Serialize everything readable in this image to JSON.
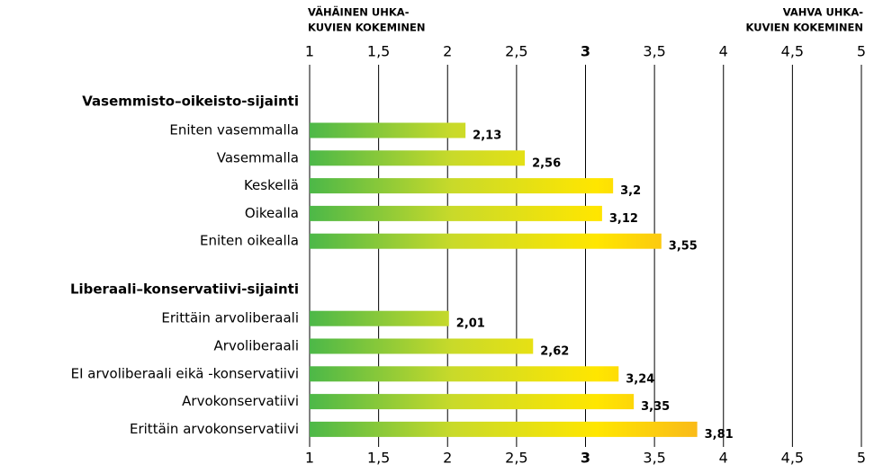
{
  "chart_data": {
    "type": "bar",
    "orientation": "horizontal",
    "annotations": [
      {
        "lines": [
          "VÄHÄINEN UHKA-",
          "KUVIEN KOKEMINEN"
        ]
      },
      {
        "lines": [
          "VAHVA UHKA-",
          "KUVIEN KOKEMINEN"
        ]
      }
    ],
    "groups": [
      {
        "name": "Vasemmisto–oikeisto-sijainti",
        "categories": [
          "Eniten vasemmalla",
          "Vasemmalla",
          "Keskellä",
          "Oikealla",
          "Eniten oikealla"
        ],
        "values": [
          2.13,
          2.56,
          3.2,
          3.12,
          3.55
        ],
        "value_labels": [
          "2,13",
          "2,56",
          "3,2",
          "3,12",
          "3,55"
        ]
      },
      {
        "name": "Liberaali–konservatiivi-sijainti",
        "categories": [
          "Erittäin arvoliberaali",
          "Arvoliberaali",
          "EI arvoliberaali eikä -konservatiivi",
          "Arvokonservatiivi",
          "Erittäin arvokonservatiivi"
        ],
        "values": [
          2.01,
          2.62,
          3.24,
          3.35,
          3.81
        ],
        "value_labels": [
          "2,01",
          "2,62",
          "3,24",
          "3,35",
          "3,81"
        ]
      }
    ],
    "colors": [
      "#4cb848",
      "#c9da2a",
      "#ffe600",
      "#f7a823"
    ],
    "xlim": [
      1,
      5
    ],
    "xticks": [
      1,
      {
        "value": 1.5,
        "label": "1,5"
      },
      2,
      {
        "value": 2.5,
        "label": "2,5"
      },
      3,
      {
        "value": 3.5,
        "label": "3,5"
      },
      4,
      {
        "value": 4.5,
        "label": "4,5"
      },
      5
    ],
    "grid": true
  }
}
